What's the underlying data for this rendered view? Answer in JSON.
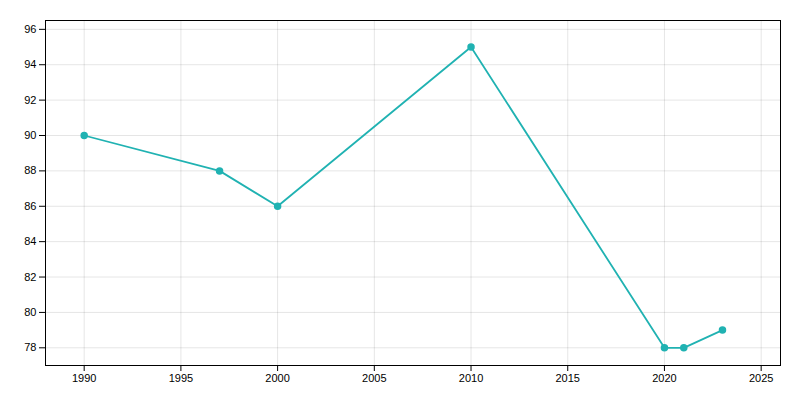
{
  "chart_data": {
    "type": "line",
    "x": [
      1990,
      1997,
      2000,
      2010,
      2020,
      2021,
      2023
    ],
    "values": [
      90,
      88,
      86,
      95,
      78,
      78,
      79
    ],
    "color": "#20b2b2",
    "marker": "circle",
    "xlim": [
      1988,
      2026
    ],
    "ylim": [
      77,
      96.5
    ],
    "xticks": [
      1990,
      1995,
      2000,
      2005,
      2010,
      2015,
      2020,
      2025
    ],
    "yticks": [
      78,
      80,
      82,
      84,
      86,
      88,
      90,
      92,
      94,
      96
    ],
    "grid": true
  }
}
